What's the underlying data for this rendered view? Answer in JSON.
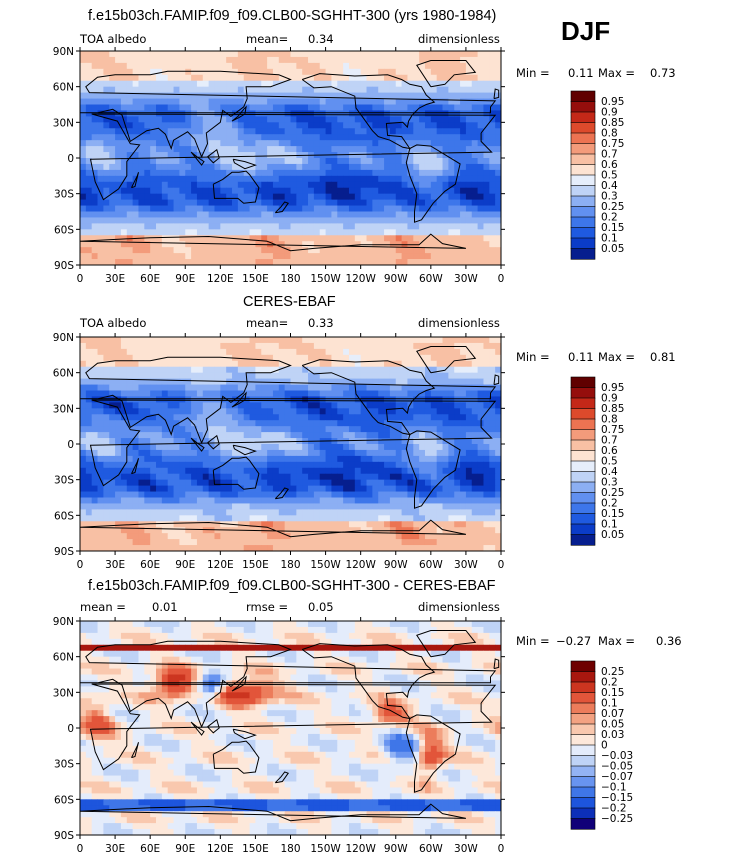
{
  "season": "DJF",
  "panels": [
    {
      "title": "f.e15b03ch.FAMIP.f09_f09.CLB00-SGHHT-300 (yrs 1980-1984)",
      "left_label": "TOA albedo",
      "center_label": "mean=",
      "center_value": "0.34",
      "right_label": "dimensionless",
      "min_label": "Min =",
      "min_value": "0.11",
      "max_label": "Max =",
      "max_value": "0.73",
      "palette": "seq",
      "colorbar_labels": [
        "0.95",
        "0.9",
        "0.85",
        "0.8",
        "0.75",
        "0.7",
        "0.6",
        "0.5",
        "0.4",
        "0.3",
        "0.25",
        "0.2",
        "0.15",
        "0.1",
        "0.05"
      ]
    },
    {
      "title": "CERES-EBAF",
      "left_label": "TOA albedo",
      "center_label": "mean=",
      "center_value": "0.33",
      "right_label": "dimensionless",
      "min_label": "Min =",
      "min_value": "0.11",
      "max_label": "Max =",
      "max_value": "0.81",
      "palette": "seq",
      "colorbar_labels": [
        "0.95",
        "0.9",
        "0.85",
        "0.8",
        "0.75",
        "0.7",
        "0.6",
        "0.5",
        "0.4",
        "0.3",
        "0.25",
        "0.2",
        "0.15",
        "0.1",
        "0.05"
      ]
    },
    {
      "title": "f.e15b03ch.FAMIP.f09_f09.CLB00-SGHHT-300 - CERES-EBAF",
      "left_label": "mean =",
      "left_value": "0.01",
      "center_label": "rmse =",
      "center_value": "0.05",
      "right_label": "dimensionless",
      "min_label": "Min =",
      "min_value": "−0.27",
      "max_label": "Max =",
      "max_value": "0.36",
      "palette": "div",
      "colorbar_labels": [
        "0.25",
        "0.2",
        "0.15",
        "0.1",
        "0.07",
        "0.05",
        "0.03",
        "0",
        "−0.03",
        "−0.05",
        "−0.07",
        "−0.1",
        "−0.15",
        "−0.2",
        "−0.25"
      ]
    }
  ],
  "lat_ticks": [
    "90N",
    "60N",
    "30N",
    "0",
    "30S",
    "60S",
    "90S"
  ],
  "lon_ticks": [
    "0",
    "30E",
    "60E",
    "90E",
    "120E",
    "150E",
    "180",
    "150W",
    "120W",
    "90W",
    "60W",
    "30W",
    "0"
  ],
  "colors": {
    "seq": [
      "#061e8e",
      "#0b3cc8",
      "#1f5ae0",
      "#3d76ea",
      "#6190f0",
      "#8caff3",
      "#bfd3f6",
      "#e6eefb",
      "#fde3d2",
      "#f8c0a4",
      "#f39b7b",
      "#ec7352",
      "#dd4a2c",
      "#c42818",
      "#950e0c",
      "#600000"
    ],
    "div": [
      "#100078",
      "#0c2fb8",
      "#1d55dd",
      "#3f76e8",
      "#6894f0",
      "#93b3f4",
      "#bfd3f6",
      "#e4ecfb",
      "#fde8da",
      "#f9c8ae",
      "#f3a282",
      "#ec7c5b",
      "#e2553a",
      "#cc3520",
      "#a8170f",
      "#6e0000"
    ],
    "coast": "#000000"
  }
}
